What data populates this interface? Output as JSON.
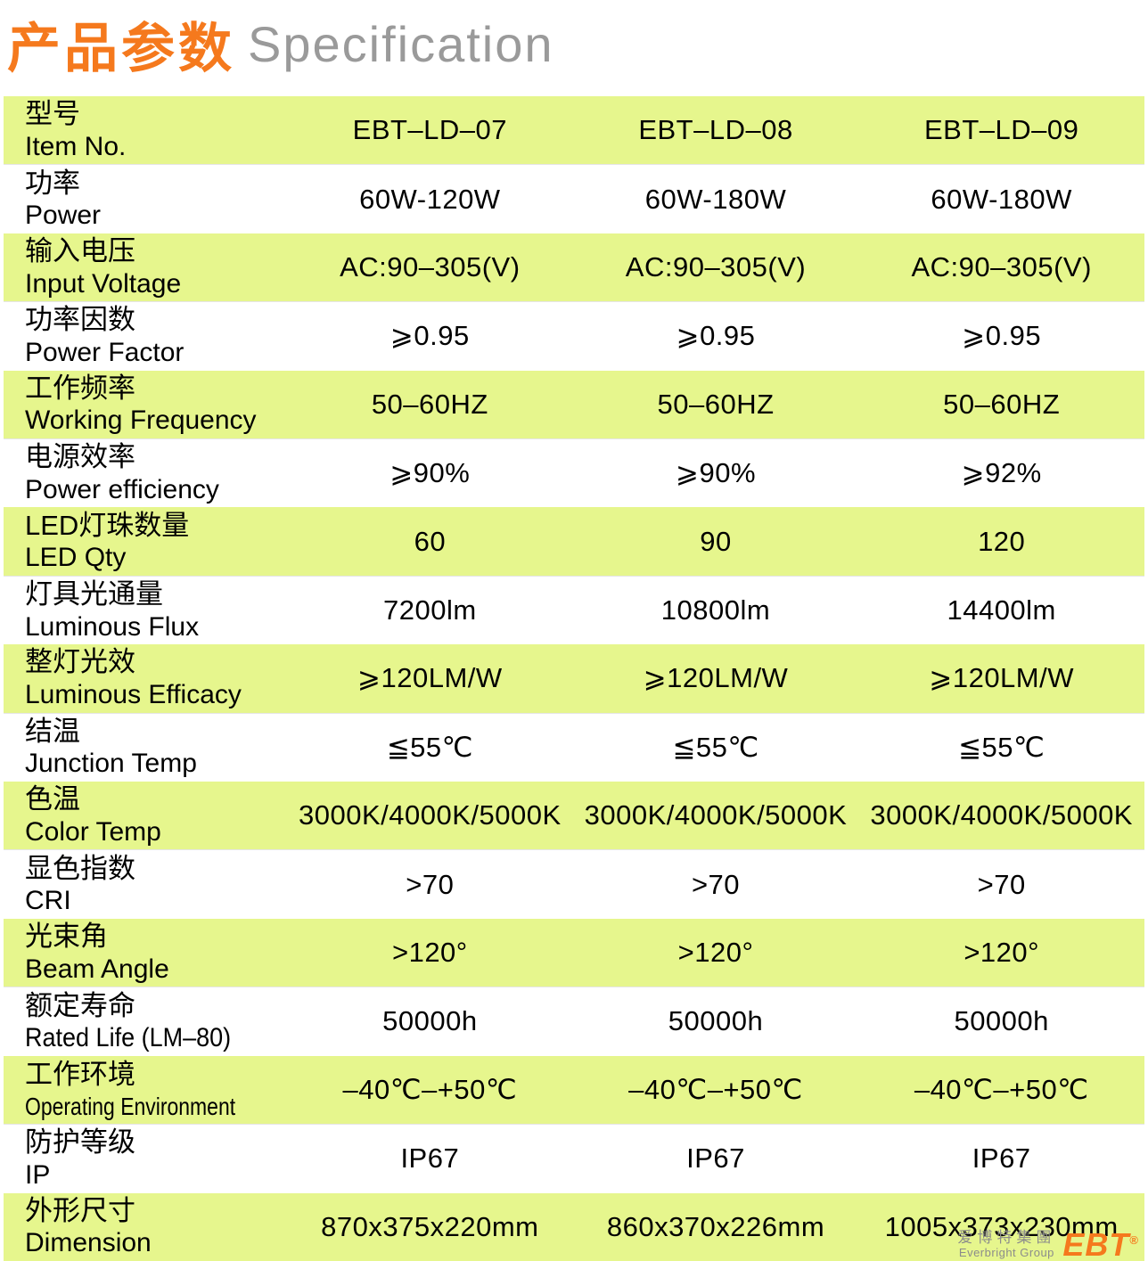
{
  "header": {
    "title_cn": "产品参数",
    "title_en": "Specification"
  },
  "table": {
    "rows": [
      {
        "label_cn": "型号",
        "label_en": "Item No.",
        "values": [
          "EBT–LD–07",
          "EBT–LD–08",
          "EBT–LD–09"
        ]
      },
      {
        "label_cn": "功率",
        "label_en": "Power",
        "values": [
          "60W-120W",
          "60W-180W",
          "60W-180W"
        ]
      },
      {
        "label_cn": "输入电压",
        "label_en": "Input Voltage",
        "values": [
          "AC:90–305(V)",
          "AC:90–305(V)",
          "AC:90–305(V)"
        ]
      },
      {
        "label_cn": "功率因数",
        "label_en": "Power Factor",
        "values": [
          "⩾0.95",
          "⩾0.95",
          "⩾0.95"
        ]
      },
      {
        "label_cn": "工作频率",
        "label_en": "Working Frequency",
        "values": [
          "50–60HZ",
          "50–60HZ",
          "50–60HZ"
        ]
      },
      {
        "label_cn": "电源效率",
        "label_en": "Power efficiency",
        "values": [
          "⩾90%",
          "⩾90%",
          "⩾92%"
        ]
      },
      {
        "label_cn": "LED灯珠数量",
        "label_en": "LED Qty",
        "values": [
          "60",
          "90",
          "120"
        ]
      },
      {
        "label_cn": "灯具光通量",
        "label_en": "Luminous Flux",
        "values": [
          "7200lm",
          "10800lm",
          "14400lm"
        ]
      },
      {
        "label_cn": "整灯光效",
        "label_en": "Luminous Efficacy",
        "values": [
          "⩾120LM/W",
          "⩾120LM/W",
          "⩾120LM/W"
        ]
      },
      {
        "label_cn": "结温",
        "label_en": "Junction Temp",
        "values": [
          "≦55℃",
          "≦55℃",
          "≦55℃"
        ]
      },
      {
        "label_cn": "色温",
        "label_en": "Color Temp",
        "values": [
          "3000K/4000K/5000K",
          "3000K/4000K/5000K",
          "3000K/4000K/5000K"
        ]
      },
      {
        "label_cn": "显色指数",
        "label_en": "CRI",
        "values": [
          ">70",
          ">70",
          ">70"
        ]
      },
      {
        "label_cn": "光束角",
        "label_en": "Beam Angle",
        "values": [
          ">120°",
          ">120°",
          ">120°"
        ]
      },
      {
        "label_cn": "额定寿命",
        "label_en": "Rated Life (LM–80)",
        "values": [
          "50000h",
          "50000h",
          "50000h"
        ]
      },
      {
        "label_cn": "工作环境",
        "label_en": "Operating Environment",
        "values": [
          "–40℃–+50℃",
          "–40℃–+50℃",
          "–40℃–+50℃"
        ]
      },
      {
        "label_cn": "防护等级",
        "label_en": "IP",
        "values": [
          "IP67",
          "IP67",
          "IP67"
        ]
      },
      {
        "label_cn": "外形尺寸",
        "label_en": "Dimension",
        "values": [
          "870x375x220mm",
          "860x370x226mm",
          "1005x373x230mm"
        ]
      }
    ]
  },
  "footer_logo": {
    "company_cn": "爱博特集團",
    "company_en": "Everbright Group",
    "brand": "EBT",
    "registered": "®"
  },
  "colors": {
    "accent_orange": "#f5791d",
    "row_green": "#e6f68d",
    "title_gray": "#9a9a9a",
    "logo_gray": "#8c8c8c"
  }
}
